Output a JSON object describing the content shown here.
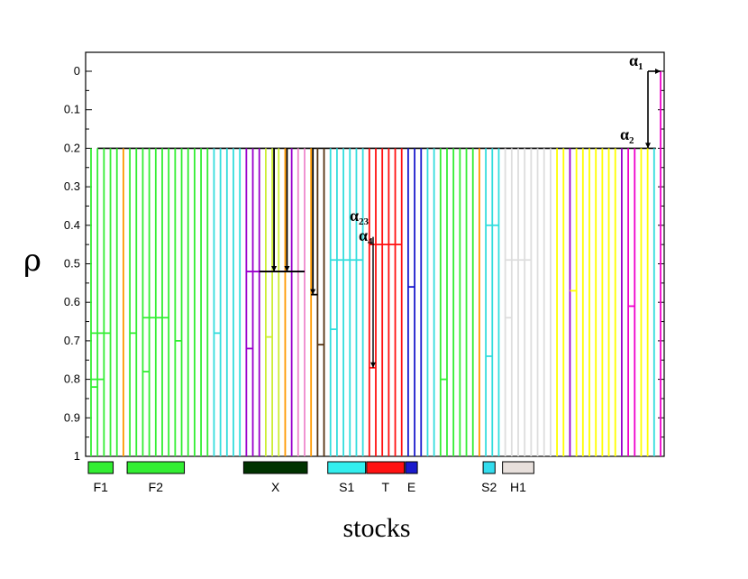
{
  "axes": {
    "ylabel": "ρ",
    "xlabel": "stocks",
    "yticks": [
      "0",
      "0.1",
      "0.2",
      "0.3",
      "0.4",
      "0.5",
      "0.6",
      "0.7",
      "0.8",
      "0.9",
      "1"
    ],
    "ylim": [
      0,
      1
    ]
  },
  "colors": {
    "green": "#33ee33",
    "orange": "#ff9900",
    "cyan": "#33dddd",
    "purple": "#9900cc",
    "lime": "#ccee33",
    "pink": "#ee88cc",
    "black": "#000000",
    "brown": "#553311",
    "red": "#ff1111",
    "blue": "#1a1acc",
    "lightgray": "#dddddd",
    "yellow": "#ffff00",
    "magenta": "#ee00cc",
    "darkgreen": "#003300"
  },
  "top_merge_level": 0.2,
  "stocks": [
    {
      "color": "green",
      "level": 1.0
    },
    {
      "color": "green",
      "level": 1.0
    },
    {
      "color": "green",
      "level": 1.0
    },
    {
      "color": "green",
      "level": 1.0
    },
    {
      "color": "green",
      "level": 1.0
    },
    {
      "color": "orange",
      "level": 0.2
    },
    {
      "color": "green",
      "level": 1.0
    },
    {
      "color": "green",
      "level": 1.0
    },
    {
      "color": "green",
      "level": 1.0
    },
    {
      "color": "green",
      "level": 1.0
    },
    {
      "color": "green",
      "level": 1.0
    },
    {
      "color": "green",
      "level": 1.0
    },
    {
      "color": "green",
      "level": 1.0
    },
    {
      "color": "green",
      "level": 1.0
    },
    {
      "color": "green",
      "level": 1.0
    },
    {
      "color": "green",
      "level": 1.0
    },
    {
      "color": "green",
      "level": 1.0
    },
    {
      "color": "green",
      "level": 1.0
    },
    {
      "color": "green",
      "level": 1.0
    },
    {
      "color": "cyan",
      "level": 1.0
    },
    {
      "color": "cyan",
      "level": 1.0
    },
    {
      "color": "cyan",
      "level": 0.2
    },
    {
      "color": "cyan",
      "level": 0.2
    },
    {
      "color": "cyan",
      "level": 0.2
    },
    {
      "color": "purple",
      "level": 1.0
    },
    {
      "color": "purple",
      "level": 1.0
    },
    {
      "color": "purple",
      "level": 1.0
    },
    {
      "color": "lime",
      "level": 1.0
    },
    {
      "color": "lime",
      "level": 1.0
    },
    {
      "color": "lime",
      "level": 1.0
    },
    {
      "color": "orange",
      "level": 1.0
    },
    {
      "color": "purple",
      "level": 1.0
    },
    {
      "color": "pink",
      "level": 1.0
    },
    {
      "color": "pink",
      "level": 1.0
    },
    {
      "color": "orange",
      "level": 1.0
    },
    {
      "color": "brown",
      "level": 1.0
    },
    {
      "color": "brown",
      "level": 0.2
    },
    {
      "color": "cyan",
      "level": 1.0
    },
    {
      "color": "cyan",
      "level": 1.0
    },
    {
      "color": "cyan",
      "level": 1.0
    },
    {
      "color": "cyan",
      "level": 1.0
    },
    {
      "color": "cyan",
      "level": 1.0
    },
    {
      "color": "cyan",
      "level": 0.2
    },
    {
      "color": "red",
      "level": 1.0
    },
    {
      "color": "red",
      "level": 1.0
    },
    {
      "color": "red",
      "level": 1.0
    },
    {
      "color": "red",
      "level": 1.0
    },
    {
      "color": "red",
      "level": 1.0
    },
    {
      "color": "red",
      "level": 0.2
    },
    {
      "color": "blue",
      "level": 1.0
    },
    {
      "color": "blue",
      "level": 1.0
    },
    {
      "color": "blue",
      "level": 0.2
    },
    {
      "color": "cyan",
      "level": 1.0
    },
    {
      "color": "cyan",
      "level": 1.0
    },
    {
      "color": "green",
      "level": 1.0
    },
    {
      "color": "green",
      "level": 1.0
    },
    {
      "color": "green",
      "level": 1.0
    },
    {
      "color": "green",
      "level": 1.0
    },
    {
      "color": "green",
      "level": 1.0
    },
    {
      "color": "green",
      "level": 1.0
    },
    {
      "color": "orange",
      "level": 0.2
    },
    {
      "color": "cyan",
      "level": 1.0
    },
    {
      "color": "cyan",
      "level": 1.0
    },
    {
      "color": "cyan",
      "level": 1.0
    },
    {
      "color": "lightgray",
      "level": 1.0
    },
    {
      "color": "lightgray",
      "level": 1.0
    },
    {
      "color": "lightgray",
      "level": 1.0
    },
    {
      "color": "lightgray",
      "level": 1.0
    },
    {
      "color": "lightgray",
      "level": 1.0
    },
    {
      "color": "lightgray",
      "level": 1.0
    },
    {
      "color": "lightgray",
      "level": 1.0
    },
    {
      "color": "lightgray",
      "level": 0.2
    },
    {
      "color": "yellow",
      "level": 1.0
    },
    {
      "color": "yellow",
      "level": 1.0
    },
    {
      "color": "purple",
      "level": 1.0
    },
    {
      "color": "yellow",
      "level": 1.0
    },
    {
      "color": "yellow",
      "level": 1.0
    },
    {
      "color": "yellow",
      "level": 1.0
    },
    {
      "color": "yellow",
      "level": 1.0
    },
    {
      "color": "yellow",
      "level": 1.0
    },
    {
      "color": "yellow",
      "level": 1.0
    },
    {
      "color": "yellow",
      "level": 1.0
    },
    {
      "color": "purple",
      "level": 1.0
    },
    {
      "color": "magenta",
      "level": 1.0
    },
    {
      "color": "magenta",
      "level": 1.0
    },
    {
      "color": "yellow",
      "level": 1.0
    },
    {
      "color": "yellow",
      "level": 1.0
    },
    {
      "color": "cyan",
      "level": 1.0
    },
    {
      "color": "magenta",
      "level": 0.0
    }
  ],
  "merges": [
    {
      "from": 0,
      "to": 1,
      "level": 0.82,
      "color": "green"
    },
    {
      "from": 0,
      "to": 2,
      "level": 0.8,
      "color": "green"
    },
    {
      "from": 0,
      "to": 3,
      "level": 0.68,
      "color": "green"
    },
    {
      "from": 6,
      "to": 7,
      "level": 0.68,
      "color": "green"
    },
    {
      "from": 8,
      "to": 9,
      "level": 0.78,
      "color": "green"
    },
    {
      "from": 8,
      "to": 12,
      "level": 0.64,
      "color": "green"
    },
    {
      "from": 13,
      "to": 14,
      "level": 0.7,
      "color": "green"
    },
    {
      "from": 19,
      "to": 20,
      "level": 0.68,
      "color": "cyan"
    },
    {
      "from": 24,
      "to": 25,
      "level": 0.72,
      "color": "purple"
    },
    {
      "from": 27,
      "to": 28,
      "level": 0.69,
      "color": "lime"
    },
    {
      "from": 24,
      "to": 33,
      "level": 0.52,
      "color": "purple"
    },
    {
      "from": 34,
      "to": 35,
      "level": 0.58,
      "color": "black"
    },
    {
      "from": 35,
      "to": 36,
      "level": 0.71,
      "color": "brown"
    },
    {
      "from": 37,
      "to": 38,
      "level": 0.67,
      "color": "cyan"
    },
    {
      "from": 37,
      "to": 42,
      "level": 0.49,
      "color": "cyan"
    },
    {
      "from": 43,
      "to": 44,
      "level": 0.77,
      "color": "red"
    },
    {
      "from": 43,
      "to": 48,
      "level": 0.45,
      "color": "red"
    },
    {
      "from": 49,
      "to": 50,
      "level": 0.56,
      "color": "blue"
    },
    {
      "from": 54,
      "to": 55,
      "level": 0.8,
      "color": "green"
    },
    {
      "from": 61,
      "to": 62,
      "level": 0.74,
      "color": "cyan"
    },
    {
      "from": 61,
      "to": 63,
      "level": 0.4,
      "color": "cyan"
    },
    {
      "from": 64,
      "to": 65,
      "level": 0.64,
      "color": "lightgray"
    },
    {
      "from": 64,
      "to": 68,
      "level": 0.49,
      "color": "lightgray"
    },
    {
      "from": 74,
      "to": 75,
      "level": 0.57,
      "color": "yellow"
    },
    {
      "from": 83,
      "to": 84,
      "level": 0.61,
      "color": "magenta"
    }
  ],
  "top_links": [
    {
      "from": 28,
      "level": 0.2,
      "color": "black",
      "arrow": true
    },
    {
      "from": 30,
      "level": 0.2,
      "color": "black",
      "arrow": true
    },
    {
      "from": 34,
      "level": 0.2,
      "color": "black",
      "arrow": true
    },
    {
      "from": 36,
      "level": 0.2,
      "color": "brown",
      "arrow": false
    }
  ],
  "groups": [
    {
      "label": "F1",
      "color": "#33ee33",
      "start": 0,
      "end": 3
    },
    {
      "label": "F2",
      "color": "#33ee33",
      "start": 6,
      "end": 14
    },
    {
      "label": "X",
      "color": "#003300",
      "start": 24,
      "end": 33
    },
    {
      "label": "S1",
      "color": "#33eeee",
      "start": 37,
      "end": 42
    },
    {
      "label": "T",
      "color": "#ff1111",
      "start": 43,
      "end": 48
    },
    {
      "label": "E",
      "color": "#1a1acc",
      "start": 49,
      "end": 50
    },
    {
      "label": "S2",
      "color": "#33ddee",
      "start": 61,
      "end": 62
    },
    {
      "label": "H1",
      "color": "#e8e0dc",
      "start": 64,
      "end": 68
    }
  ],
  "annotations": [
    {
      "text": "α",
      "sub": "1"
    },
    {
      "text": "α",
      "sub": "2"
    },
    {
      "text": "α",
      "sub": "23"
    },
    {
      "text": "α",
      "sub": "4"
    }
  ]
}
